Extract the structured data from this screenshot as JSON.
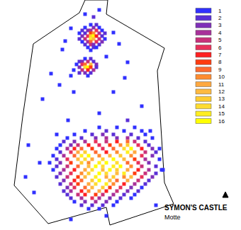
{
  "chart_data": {
    "type": "density_map",
    "title": "SYMON'S CASTLE",
    "subtitle": "Motte",
    "xlim": [
      0,
      340
    ],
    "ylim": [
      325,
      0
    ],
    "tick_labels": false,
    "grid": false,
    "marker": "square",
    "outline": [
      [
        47,
        62
      ],
      [
        112,
        18
      ],
      [
        120,
        0
      ],
      [
        152,
        0
      ],
      [
        150,
        20
      ],
      [
        232,
        68
      ],
      [
        222,
        100
      ],
      [
        232,
        258
      ],
      [
        245,
        288
      ],
      [
        155,
        318
      ],
      [
        150,
        293
      ],
      [
        68,
        316
      ],
      [
        20,
        262
      ],
      [
        32,
        165
      ],
      [
        47,
        62
      ]
    ],
    "levels": [
      1,
      2,
      3,
      4,
      5,
      6,
      7,
      8,
      9,
      10,
      11,
      12,
      13,
      14,
      15,
      16
    ],
    "colors": [
      "#3030ff",
      "#5a2fd6",
      "#7f2fb8",
      "#a8309a",
      "#c8307a",
      "#e8305a",
      "#ff2020",
      "#ff3c10",
      "#ff6a30",
      "#ff8c30",
      "#ffa840",
      "#ffba40",
      "#ffcc30",
      "#ffdc30",
      "#ffee20",
      "#ffff00"
    ],
    "cells": [
      [
        128,
        35,
        1
      ],
      [
        136,
        35,
        2
      ],
      [
        120,
        39,
        1
      ],
      [
        132,
        39,
        3
      ],
      [
        140,
        39,
        1
      ],
      [
        116,
        43,
        2
      ],
      [
        124,
        43,
        3
      ],
      [
        128,
        43,
        4
      ],
      [
        136,
        43,
        6
      ],
      [
        144,
        43,
        1
      ],
      [
        112,
        47,
        1
      ],
      [
        120,
        47,
        2
      ],
      [
        128,
        47,
        8
      ],
      [
        132,
        47,
        10
      ],
      [
        140,
        47,
        4
      ],
      [
        148,
        47,
        2
      ],
      [
        116,
        51,
        3
      ],
      [
        124,
        51,
        6
      ],
      [
        128,
        51,
        13
      ],
      [
        132,
        51,
        16
      ],
      [
        136,
        51,
        7
      ],
      [
        144,
        51,
        2
      ],
      [
        112,
        55,
        2
      ],
      [
        120,
        55,
        5
      ],
      [
        128,
        55,
        15
      ],
      [
        132,
        55,
        12
      ],
      [
        140,
        55,
        5
      ],
      [
        148,
        55,
        1
      ],
      [
        116,
        59,
        1
      ],
      [
        124,
        59,
        4
      ],
      [
        128,
        59,
        9
      ],
      [
        136,
        59,
        6
      ],
      [
        144,
        59,
        3
      ],
      [
        120,
        63,
        2
      ],
      [
        128,
        63,
        5
      ],
      [
        132,
        63,
        3
      ],
      [
        140,
        63,
        2
      ],
      [
        124,
        67,
        1
      ],
      [
        132,
        67,
        2
      ],
      [
        136,
        67,
        1
      ],
      [
        128,
        71,
        1
      ],
      [
        120,
        83,
        1
      ],
      [
        128,
        83,
        2
      ],
      [
        112,
        87,
        2
      ],
      [
        116,
        87,
        3
      ],
      [
        124,
        87,
        5
      ],
      [
        132,
        87,
        2
      ],
      [
        108,
        91,
        1
      ],
      [
        116,
        91,
        6
      ],
      [
        120,
        91,
        9
      ],
      [
        128,
        91,
        12
      ],
      [
        136,
        91,
        3
      ],
      [
        112,
        95,
        3
      ],
      [
        120,
        95,
        14
      ],
      [
        124,
        95,
        16
      ],
      [
        128,
        95,
        8
      ],
      [
        136,
        95,
        2
      ],
      [
        104,
        99,
        1
      ],
      [
        116,
        99,
        5
      ],
      [
        124,
        99,
        7
      ],
      [
        132,
        99,
        4
      ],
      [
        112,
        103,
        2
      ],
      [
        120,
        103,
        3
      ],
      [
        128,
        103,
        2
      ],
      [
        100,
        107,
        1
      ],
      [
        124,
        107,
        1
      ],
      [
        140,
        14,
        1
      ],
      [
        132,
        24,
        2
      ],
      [
        100,
        40,
        1
      ],
      [
        160,
        46,
        1
      ],
      [
        168,
        62,
        1
      ],
      [
        88,
        70,
        1
      ],
      [
        150,
        80,
        1
      ],
      [
        180,
        88,
        1
      ],
      [
        72,
        104,
        1
      ],
      [
        104,
        130,
        1
      ],
      [
        60,
        140,
        1
      ],
      [
        160,
        130,
        1
      ],
      [
        200,
        150,
        1
      ],
      [
        140,
        160,
        1
      ],
      [
        96,
        170,
        1
      ],
      [
        180,
        170,
        2
      ],
      [
        80,
        190,
        1
      ],
      [
        40,
        205,
        1
      ],
      [
        212,
        185,
        1
      ],
      [
        56,
        230,
        1
      ],
      [
        36,
        250,
        1
      ],
      [
        228,
        240,
        1
      ],
      [
        48,
        272,
        1
      ],
      [
        220,
        290,
        1
      ],
      [
        100,
        310,
        1
      ],
      [
        150,
        305,
        1
      ],
      [
        120,
        20,
        1
      ],
      [
        92,
        58,
        1
      ],
      [
        176,
        110,
        1
      ],
      [
        84,
        120,
        1
      ],
      [
        140,
        180,
        1
      ],
      [
        165,
        180,
        1
      ],
      [
        190,
        180,
        1
      ],
      [
        120,
        185,
        1
      ],
      [
        150,
        185,
        2
      ],
      [
        175,
        185,
        1
      ],
      [
        200,
        185,
        1
      ],
      [
        105,
        190,
        1
      ],
      [
        130,
        190,
        2
      ],
      [
        145,
        190,
        3
      ],
      [
        160,
        190,
        2
      ],
      [
        185,
        190,
        2
      ],
      [
        205,
        190,
        1
      ],
      [
        95,
        195,
        1
      ],
      [
        115,
        195,
        2
      ],
      [
        135,
        195,
        3
      ],
      [
        150,
        195,
        4
      ],
      [
        165,
        195,
        3
      ],
      [
        180,
        195,
        4
      ],
      [
        195,
        195,
        2
      ],
      [
        215,
        195,
        1
      ],
      [
        90,
        200,
        2
      ],
      [
        105,
        200,
        3
      ],
      [
        120,
        200,
        4
      ],
      [
        135,
        200,
        6
      ],
      [
        150,
        200,
        5
      ],
      [
        165,
        200,
        7
      ],
      [
        180,
        200,
        9
      ],
      [
        190,
        200,
        5
      ],
      [
        205,
        200,
        2
      ],
      [
        85,
        205,
        1
      ],
      [
        100,
        205,
        3
      ],
      [
        110,
        205,
        5
      ],
      [
        125,
        205,
        7
      ],
      [
        140,
        205,
        6
      ],
      [
        155,
        205,
        8
      ],
      [
        170,
        205,
        10
      ],
      [
        180,
        205,
        13
      ],
      [
        195,
        205,
        6
      ],
      [
        210,
        205,
        2
      ],
      [
        80,
        210,
        1
      ],
      [
        95,
        210,
        4
      ],
      [
        105,
        210,
        7
      ],
      [
        115,
        210,
        9
      ],
      [
        130,
        210,
        8
      ],
      [
        145,
        210,
        6
      ],
      [
        160,
        210,
        9
      ],
      [
        175,
        210,
        14
      ],
      [
        185,
        210,
        16
      ],
      [
        200,
        210,
        7
      ],
      [
        215,
        210,
        3
      ],
      [
        225,
        210,
        1
      ],
      [
        85,
        215,
        2
      ],
      [
        100,
        215,
        6
      ],
      [
        110,
        215,
        11
      ],
      [
        120,
        215,
        13
      ],
      [
        135,
        215,
        9
      ],
      [
        150,
        215,
        7
      ],
      [
        165,
        215,
        10
      ],
      [
        180,
        215,
        15
      ],
      [
        190,
        215,
        11
      ],
      [
        205,
        215,
        5
      ],
      [
        220,
        215,
        2
      ],
      [
        75,
        220,
        1
      ],
      [
        90,
        220,
        4
      ],
      [
        105,
        220,
        9
      ],
      [
        115,
        220,
        15
      ],
      [
        125,
        220,
        16
      ],
      [
        140,
        220,
        10
      ],
      [
        155,
        220,
        12
      ],
      [
        170,
        220,
        13
      ],
      [
        185,
        220,
        10
      ],
      [
        200,
        220,
        6
      ],
      [
        215,
        220,
        3
      ],
      [
        80,
        225,
        2
      ],
      [
        95,
        225,
        6
      ],
      [
        110,
        225,
        12
      ],
      [
        120,
        225,
        14
      ],
      [
        130,
        225,
        11
      ],
      [
        145,
        225,
        13
      ],
      [
        160,
        225,
        16
      ],
      [
        175,
        225,
        12
      ],
      [
        190,
        225,
        8
      ],
      [
        205,
        225,
        4
      ],
      [
        225,
        225,
        1
      ],
      [
        70,
        230,
        1
      ],
      [
        85,
        230,
        3
      ],
      [
        100,
        230,
        8
      ],
      [
        115,
        230,
        13
      ],
      [
        125,
        230,
        10
      ],
      [
        140,
        230,
        15
      ],
      [
        150,
        230,
        16
      ],
      [
        165,
        230,
        14
      ],
      [
        180,
        230,
        9
      ],
      [
        195,
        230,
        6
      ],
      [
        210,
        230,
        3
      ],
      [
        80,
        235,
        2
      ],
      [
        95,
        235,
        5
      ],
      [
        110,
        235,
        9
      ],
      [
        125,
        235,
        12
      ],
      [
        135,
        235,
        16
      ],
      [
        145,
        235,
        14
      ],
      [
        160,
        235,
        15
      ],
      [
        170,
        235,
        16
      ],
      [
        185,
        235,
        10
      ],
      [
        200,
        235,
        5
      ],
      [
        220,
        235,
        2
      ],
      [
        75,
        240,
        1
      ],
      [
        90,
        240,
        4
      ],
      [
        105,
        240,
        7
      ],
      [
        120,
        240,
        11
      ],
      [
        130,
        240,
        14
      ],
      [
        145,
        240,
        12
      ],
      [
        155,
        240,
        16
      ],
      [
        165,
        240,
        13
      ],
      [
        180,
        240,
        11
      ],
      [
        195,
        240,
        7
      ],
      [
        210,
        240,
        4
      ],
      [
        230,
        240,
        1
      ],
      [
        85,
        245,
        3
      ],
      [
        100,
        245,
        6
      ],
      [
        115,
        245,
        10
      ],
      [
        125,
        245,
        13
      ],
      [
        140,
        245,
        16
      ],
      [
        150,
        245,
        14
      ],
      [
        165,
        245,
        12
      ],
      [
        175,
        245,
        15
      ],
      [
        190,
        245,
        8
      ],
      [
        205,
        245,
        5
      ],
      [
        220,
        245,
        2
      ],
      [
        80,
        250,
        2
      ],
      [
        95,
        250,
        5
      ],
      [
        110,
        250,
        8
      ],
      [
        120,
        250,
        12
      ],
      [
        135,
        250,
        15
      ],
      [
        150,
        250,
        11
      ],
      [
        160,
        250,
        13
      ],
      [
        175,
        250,
        10
      ],
      [
        185,
        250,
        12
      ],
      [
        200,
        250,
        6
      ],
      [
        215,
        250,
        3
      ],
      [
        90,
        255,
        3
      ],
      [
        105,
        255,
        7
      ],
      [
        115,
        255,
        9
      ],
      [
        130,
        255,
        13
      ],
      [
        140,
        255,
        16
      ],
      [
        155,
        255,
        12
      ],
      [
        165,
        255,
        9
      ],
      [
        180,
        255,
        11
      ],
      [
        195,
        255,
        5
      ],
      [
        210,
        255,
        2
      ],
      [
        85,
        260,
        2
      ],
      [
        100,
        260,
        5
      ],
      [
        110,
        260,
        8
      ],
      [
        125,
        260,
        11
      ],
      [
        135,
        260,
        14
      ],
      [
        150,
        260,
        15
      ],
      [
        160,
        260,
        10
      ],
      [
        175,
        260,
        7
      ],
      [
        190,
        260,
        4
      ],
      [
        205,
        260,
        2
      ],
      [
        95,
        265,
        3
      ],
      [
        105,
        265,
        6
      ],
      [
        120,
        265,
        9
      ],
      [
        130,
        265,
        12
      ],
      [
        145,
        265,
        13
      ],
      [
        155,
        265,
        8
      ],
      [
        170,
        265,
        6
      ],
      [
        185,
        265,
        3
      ],
      [
        200,
        265,
        1
      ],
      [
        90,
        270,
        2
      ],
      [
        100,
        270,
        4
      ],
      [
        115,
        270,
        7
      ],
      [
        125,
        270,
        10
      ],
      [
        140,
        270,
        11
      ],
      [
        150,
        270,
        7
      ],
      [
        165,
        270,
        5
      ],
      [
        180,
        270,
        3
      ],
      [
        195,
        270,
        2
      ],
      [
        95,
        275,
        2
      ],
      [
        110,
        275,
        5
      ],
      [
        120,
        275,
        7
      ],
      [
        135,
        275,
        8
      ],
      [
        145,
        275,
        5
      ],
      [
        160,
        275,
        4
      ],
      [
        175,
        275,
        2
      ],
      [
        190,
        275,
        1
      ],
      [
        100,
        280,
        2
      ],
      [
        115,
        280,
        4
      ],
      [
        130,
        280,
        6
      ],
      [
        140,
        280,
        4
      ],
      [
        155,
        280,
        3
      ],
      [
        170,
        280,
        2
      ],
      [
        185,
        280,
        1
      ],
      [
        105,
        285,
        1
      ],
      [
        120,
        285,
        3
      ],
      [
        135,
        285,
        4
      ],
      [
        150,
        285,
        3
      ],
      [
        165,
        285,
        1
      ],
      [
        115,
        290,
        2
      ],
      [
        130,
        290,
        2
      ],
      [
        145,
        290,
        2
      ],
      [
        160,
        290,
        1
      ],
      [
        125,
        295,
        1
      ],
      [
        140,
        295,
        1
      ]
    ]
  }
}
